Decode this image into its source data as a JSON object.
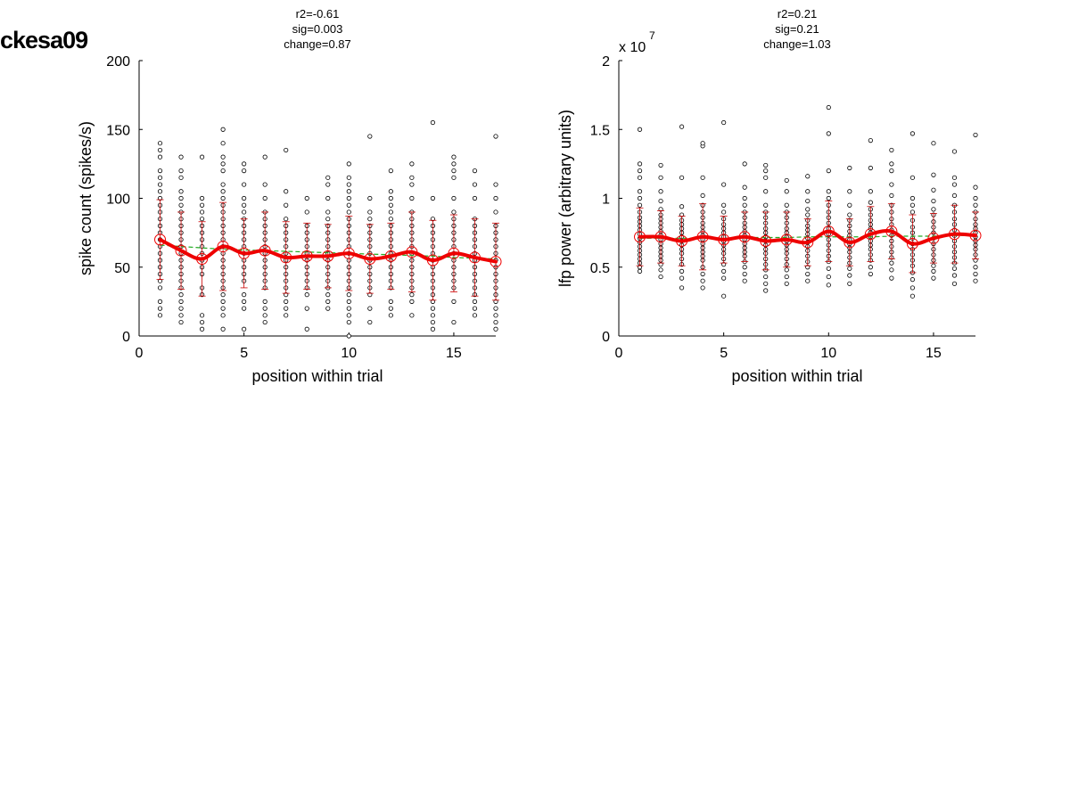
{
  "figure_label": "ckesa09",
  "chart_data": [
    {
      "type": "scatter",
      "title_lines": [
        "r2=-0.61",
        "sig=0.003",
        "change=0.87"
      ],
      "xlabel": "position within trial",
      "ylabel": "spike count (spikes/s)",
      "xlim": [
        0,
        17
      ],
      "ylim": [
        0,
        200
      ],
      "xticks": [
        0,
        5,
        10,
        15
      ],
      "yticks": [
        0,
        50,
        100,
        150,
        200
      ],
      "ytick_labels": [
        "0",
        "50",
        "100",
        "150",
        "200"
      ],
      "scale_note": "",
      "grid": false,
      "positions": [
        1,
        2,
        3,
        4,
        5,
        6,
        7,
        8,
        9,
        10,
        11,
        12,
        13,
        14,
        15,
        16,
        17
      ],
      "mean": [
        70,
        62,
        56,
        65,
        60,
        62,
        57,
        58,
        58,
        60,
        56,
        58,
        61,
        55,
        60,
        57,
        54
      ],
      "sd": [
        29,
        28,
        27,
        32,
        25,
        28,
        26,
        24,
        23,
        27,
        25,
        24,
        29,
        29,
        28,
        28,
        28
      ],
      "trend": [
        66,
        65,
        64,
        63,
        62.5,
        62,
        61.5,
        61,
        60.5,
        60,
        59.5,
        59,
        58.5,
        58,
        57,
        56.5,
        56
      ],
      "points": [
        [
          15,
          20,
          25,
          35,
          40,
          45,
          50,
          55,
          60,
          65,
          70,
          75,
          80,
          85,
          90,
          95,
          100,
          105,
          110,
          115,
          120,
          130,
          135,
          140
        ],
        [
          10,
          15,
          20,
          25,
          30,
          35,
          40,
          45,
          50,
          55,
          60,
          65,
          70,
          75,
          80,
          85,
          90,
          95,
          100,
          105,
          115,
          120,
          130
        ],
        [
          5,
          10,
          15,
          30,
          35,
          45,
          50,
          55,
          60,
          65,
          70,
          75,
          80,
          85,
          90,
          95,
          100,
          130
        ],
        [
          5,
          15,
          20,
          25,
          30,
          35,
          40,
          45,
          50,
          55,
          60,
          65,
          70,
          75,
          80,
          85,
          90,
          95,
          100,
          105,
          110,
          120,
          125,
          130,
          140,
          150
        ],
        [
          5,
          20,
          25,
          30,
          40,
          45,
          50,
          55,
          60,
          65,
          70,
          75,
          80,
          85,
          90,
          95,
          100,
          110,
          120,
          125
        ],
        [
          10,
          15,
          20,
          25,
          35,
          40,
          45,
          50,
          55,
          60,
          65,
          70,
          75,
          80,
          85,
          90,
          100,
          110,
          130
        ],
        [
          15,
          20,
          25,
          30,
          35,
          40,
          45,
          50,
          55,
          60,
          65,
          70,
          75,
          80,
          85,
          95,
          105,
          135
        ],
        [
          5,
          20,
          30,
          35,
          40,
          45,
          50,
          55,
          60,
          65,
          70,
          75,
          80,
          90,
          100
        ],
        [
          20,
          25,
          30,
          35,
          40,
          45,
          50,
          55,
          60,
          65,
          70,
          75,
          80,
          85,
          90,
          100,
          110,
          115
        ],
        [
          0,
          10,
          15,
          20,
          25,
          30,
          35,
          40,
          45,
          50,
          55,
          60,
          65,
          70,
          75,
          80,
          85,
          90,
          95,
          100,
          105,
          110,
          115,
          125
        ],
        [
          10,
          20,
          30,
          35,
          40,
          45,
          50,
          55,
          60,
          65,
          70,
          75,
          80,
          85,
          90,
          100,
          145
        ],
        [
          15,
          20,
          25,
          35,
          40,
          45,
          50,
          55,
          60,
          65,
          70,
          75,
          80,
          85,
          90,
          95,
          100,
          105,
          120
        ],
        [
          15,
          25,
          30,
          35,
          40,
          45,
          50,
          55,
          60,
          65,
          70,
          75,
          80,
          85,
          90,
          100,
          110,
          115,
          125
        ],
        [
          5,
          10,
          15,
          20,
          25,
          30,
          35,
          40,
          45,
          50,
          55,
          60,
          65,
          70,
          75,
          80,
          85,
          100,
          155
        ],
        [
          10,
          25,
          35,
          40,
          45,
          50,
          55,
          60,
          65,
          70,
          75,
          80,
          85,
          90,
          100,
          115,
          120,
          125,
          130
        ],
        [
          15,
          20,
          25,
          30,
          35,
          40,
          45,
          50,
          55,
          60,
          65,
          70,
          75,
          80,
          85,
          100,
          110,
          120
        ],
        [
          5,
          10,
          15,
          20,
          25,
          30,
          35,
          40,
          45,
          50,
          55,
          60,
          65,
          70,
          75,
          80,
          90,
          100,
          110,
          145
        ]
      ]
    },
    {
      "type": "scatter",
      "title_lines": [
        "r2=0.21",
        "sig=0.21",
        "change=1.03"
      ],
      "xlabel": "position within trial",
      "ylabel": "lfp power (arbitrary units)",
      "xlim": [
        0,
        17
      ],
      "ylim": [
        0,
        2
      ],
      "xticks": [
        0,
        5,
        10,
        15
      ],
      "yticks": [
        0,
        0.5,
        1,
        1.5,
        2
      ],
      "ytick_labels": [
        "0",
        "0.5",
        "1",
        "1.5",
        "2"
      ],
      "scale_note": "x 10",
      "scale_exponent": "7",
      "grid": false,
      "positions": [
        1,
        2,
        3,
        4,
        5,
        6,
        7,
        8,
        9,
        10,
        11,
        12,
        13,
        14,
        15,
        16,
        17
      ],
      "mean": [
        0.72,
        0.72,
        0.69,
        0.72,
        0.7,
        0.72,
        0.69,
        0.7,
        0.68,
        0.76,
        0.68,
        0.74,
        0.76,
        0.67,
        0.71,
        0.74,
        0.73
      ],
      "sd": [
        0.21,
        0.19,
        0.18,
        0.24,
        0.17,
        0.18,
        0.21,
        0.2,
        0.17,
        0.22,
        0.17,
        0.2,
        0.2,
        0.21,
        0.18,
        0.21,
        0.17
      ],
      "trend": [
        0.71,
        0.71,
        0.71,
        0.71,
        0.71,
        0.715,
        0.715,
        0.715,
        0.72,
        0.72,
        0.72,
        0.72,
        0.725,
        0.725,
        0.725,
        0.73,
        0.73
      ],
      "points": [
        [
          0.47,
          0.5,
          0.53,
          0.56,
          0.59,
          0.62,
          0.65,
          0.68,
          0.71,
          0.74,
          0.77,
          0.8,
          0.83,
          0.86,
          0.9,
          0.95,
          1.0,
          1.05,
          1.15,
          1.2,
          1.25,
          1.5
        ],
        [
          0.43,
          0.48,
          0.52,
          0.55,
          0.58,
          0.61,
          0.64,
          0.67,
          0.7,
          0.73,
          0.76,
          0.79,
          0.82,
          0.85,
          0.88,
          0.92,
          0.98,
          1.05,
          1.15,
          1.24
        ],
        [
          0.35,
          0.42,
          0.47,
          0.52,
          0.56,
          0.6,
          0.63,
          0.66,
          0.69,
          0.72,
          0.75,
          0.78,
          0.81,
          0.84,
          0.88,
          0.94,
          1.15,
          1.52
        ],
        [
          0.35,
          0.4,
          0.45,
          0.5,
          0.55,
          0.58,
          0.61,
          0.64,
          0.67,
          0.7,
          0.73,
          0.76,
          0.79,
          0.82,
          0.86,
          0.9,
          0.95,
          1.02,
          1.15,
          1.38,
          1.4
        ],
        [
          0.29,
          0.42,
          0.47,
          0.52,
          0.56,
          0.6,
          0.63,
          0.66,
          0.69,
          0.72,
          0.75,
          0.78,
          0.81,
          0.85,
          0.9,
          0.95,
          1.1,
          1.55
        ],
        [
          0.4,
          0.45,
          0.5,
          0.54,
          0.58,
          0.61,
          0.64,
          0.67,
          0.7,
          0.73,
          0.76,
          0.79,
          0.82,
          0.86,
          0.9,
          0.95,
          1.0,
          1.08,
          1.25
        ],
        [
          0.33,
          0.38,
          0.43,
          0.48,
          0.52,
          0.56,
          0.6,
          0.63,
          0.66,
          0.69,
          0.72,
          0.75,
          0.78,
          0.82,
          0.86,
          0.9,
          0.95,
          1.05,
          1.15,
          1.2,
          1.24
        ],
        [
          0.38,
          0.43,
          0.48,
          0.52,
          0.56,
          0.6,
          0.63,
          0.66,
          0.69,
          0.72,
          0.75,
          0.78,
          0.82,
          0.86,
          0.9,
          0.95,
          1.05,
          1.13
        ],
        [
          0.4,
          0.45,
          0.5,
          0.54,
          0.58,
          0.62,
          0.65,
          0.68,
          0.71,
          0.74,
          0.77,
          0.8,
          0.84,
          0.88,
          0.92,
          0.98,
          1.05,
          1.16
        ],
        [
          0.37,
          0.43,
          0.49,
          0.54,
          0.58,
          0.62,
          0.66,
          0.7,
          0.74,
          0.78,
          0.82,
          0.86,
          0.9,
          0.95,
          1.0,
          1.05,
          1.2,
          1.47,
          1.66
        ],
        [
          0.38,
          0.44,
          0.49,
          0.53,
          0.57,
          0.61,
          0.64,
          0.67,
          0.7,
          0.73,
          0.76,
          0.8,
          0.84,
          0.88,
          0.95,
          1.05,
          1.22
        ],
        [
          0.45,
          0.5,
          0.55,
          0.59,
          0.63,
          0.66,
          0.69,
          0.72,
          0.75,
          0.78,
          0.81,
          0.84,
          0.88,
          0.92,
          0.97,
          1.05,
          1.22,
          1.42
        ],
        [
          0.42,
          0.48,
          0.53,
          0.57,
          0.61,
          0.65,
          0.69,
          0.73,
          0.77,
          0.81,
          0.85,
          0.9,
          0.95,
          1.02,
          1.1,
          1.2,
          1.25,
          1.35
        ],
        [
          0.29,
          0.35,
          0.41,
          0.46,
          0.51,
          0.55,
          0.59,
          0.63,
          0.67,
          0.71,
          0.75,
          0.79,
          0.84,
          0.9,
          0.95,
          1.0,
          1.15,
          1.47
        ],
        [
          0.42,
          0.47,
          0.51,
          0.55,
          0.59,
          0.63,
          0.67,
          0.71,
          0.75,
          0.79,
          0.83,
          0.88,
          0.92,
          0.98,
          1.06,
          1.17,
          1.4
        ],
        [
          0.38,
          0.44,
          0.49,
          0.53,
          0.57,
          0.61,
          0.65,
          0.69,
          0.73,
          0.77,
          0.81,
          0.85,
          0.9,
          0.95,
          1.02,
          1.1,
          1.15,
          1.34
        ],
        [
          0.4,
          0.45,
          0.5,
          0.55,
          0.59,
          0.63,
          0.66,
          0.69,
          0.72,
          0.75,
          0.78,
          0.81,
          0.85,
          0.9,
          0.95,
          1.0,
          1.08,
          1.46
        ]
      ]
    }
  ]
}
